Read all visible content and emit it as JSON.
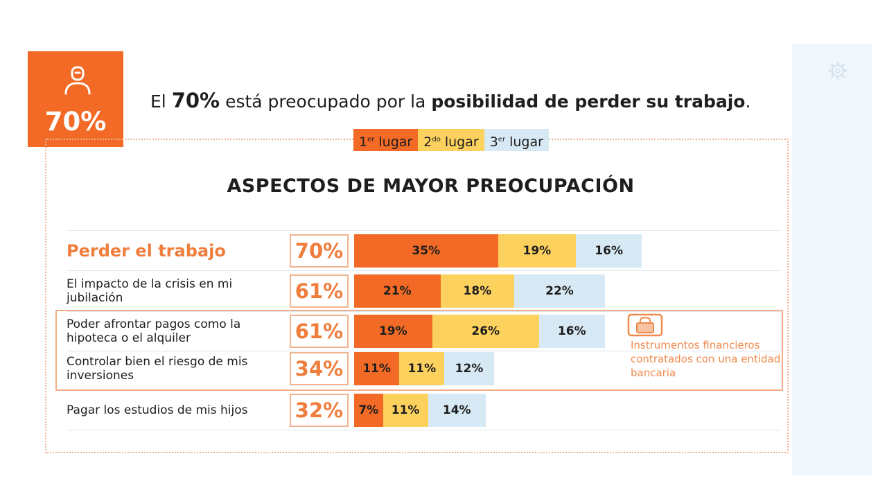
{
  "badge": {
    "value": "70%",
    "icon": "person-icon",
    "color": "#f26a25"
  },
  "headline": {
    "pre": "El ",
    "pct": "70%",
    "mid": " está preocupado por la ",
    "bold": "posibilidad de perder su trabajo",
    "end": "."
  },
  "legend": [
    {
      "label": "1",
      "sup": "er",
      "suffix": " lugar",
      "color": "#f26a25"
    },
    {
      "label": "2",
      "sup": "do",
      "suffix": " lugar",
      "color": "#fcd15e"
    },
    {
      "label": "3",
      "sup": "er",
      "suffix": " lugar",
      "color": "#d7e9f5"
    }
  ],
  "note": {
    "icon": "safe-box-icon",
    "text": "Instrumentos financieros contratados con una entidad bancaria"
  },
  "chart_data": {
    "type": "bar",
    "stacked": true,
    "orientation": "horizontal",
    "title": "ASPECTOS DE MAYOR PREOCUPACIÓN",
    "unit": "%",
    "categories": [
      "Perder el trabajo",
      "El impacto de la crisis en mi jubilación",
      "Poder afrontar pagos como la hipoteca o el alquiler",
      "Controlar bien el riesgo de mis inversiones",
      "Pagar los estudios de mis hijos"
    ],
    "totals": [
      "70%",
      "61%",
      "61%",
      "34%",
      "32%"
    ],
    "series": [
      {
        "name": "1er lugar",
        "color": "#f26a25",
        "values": [
          35,
          21,
          19,
          11,
          7
        ]
      },
      {
        "name": "2do lugar",
        "color": "#fcd15e",
        "values": [
          19,
          18,
          26,
          11,
          11
        ]
      },
      {
        "name": "3er lugar",
        "color": "#d7e9f5",
        "values": [
          16,
          22,
          16,
          12,
          14
        ]
      }
    ],
    "highlighted_categories": [
      2,
      3
    ]
  }
}
